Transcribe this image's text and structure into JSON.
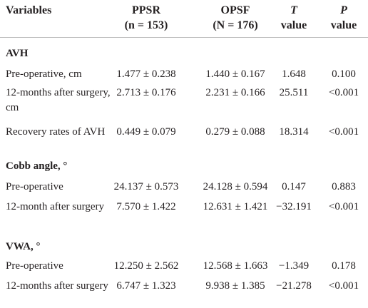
{
  "table": {
    "header": [
      {
        "lines": [
          "Variables"
        ]
      },
      {
        "lines": [
          "PPSR",
          "(n = 153)"
        ]
      },
      {
        "lines": [
          "OPSF",
          "(N = 176)"
        ]
      },
      {
        "lines": [
          "T",
          "value"
        ]
      },
      {
        "lines": [
          "P",
          "value"
        ]
      }
    ],
    "rows": [
      {
        "section": "AVH"
      },
      {
        "cells": [
          "Pre-operative, cm",
          "1.477 ± 0.238",
          "1.440 ± 0.167",
          "1.648",
          "0.100"
        ]
      },
      {
        "cells": [
          "12-months after surgery, cm",
          "2.713 ± 0.176",
          "2.231 ± 0.166",
          "25.511",
          "<0.001"
        ]
      },
      {
        "cells": [
          "Recovery rates of AVH",
          "0.449 ± 0.079",
          "0.279 ± 0.088",
          "18.314",
          "<0.001"
        ]
      },
      {
        "section": "Cobb angle, °"
      },
      {
        "cells": [
          "Pre-operative",
          "24.137 ± 0.573",
          "24.128 ± 0.594",
          "0.147",
          "0.883"
        ]
      },
      {
        "cells": [
          "12-month after surgery",
          "7.570 ± 1.422",
          "12.631 ± 1.421",
          "−32.191",
          "<0.001"
        ]
      },
      {
        "section": "VWA, °"
      },
      {
        "cells": [
          "Pre-operative",
          "12.250 ± 2.562",
          "12.568 ± 1.663",
          "−1.349",
          "0.178"
        ]
      },
      {
        "cells": [
          "12-months after surgery",
          "6.747 ± 1.323",
          "9.938 ± 1.385",
          "−21.278",
          "<0.001"
        ]
      }
    ]
  }
}
